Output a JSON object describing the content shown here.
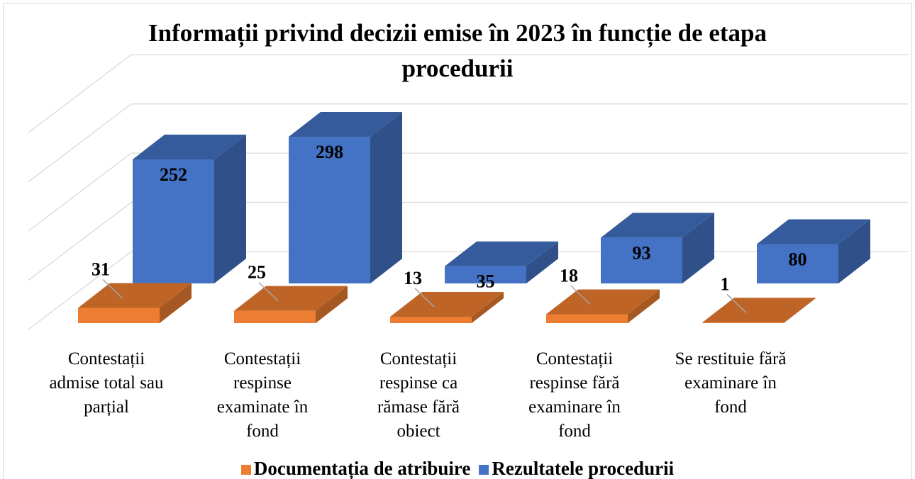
{
  "chart_data": {
    "type": "bar3d",
    "title": "Informații privind decizii emise în 2023 în funcție de etapa procedurii",
    "categories": [
      "Contestații admise total sau parțial",
      "Contestații respinse examinate în fond",
      "Contestații respinse ca rămase fără obiect",
      "Contestații respinse fără examinare în fond",
      "Se restituie fără examinare în fond"
    ],
    "series": [
      {
        "name": "Documentația de atribuire",
        "color": "#ed7d31",
        "values": [
          31,
          25,
          13,
          18,
          1
        ]
      },
      {
        "name": "Rezultatele procedurii",
        "color": "#4472c4",
        "values": [
          252,
          298,
          35,
          93,
          80
        ]
      }
    ],
    "ylim": [
      0,
      400
    ],
    "yticks": [
      0,
      100,
      200,
      300,
      400
    ],
    "grid": true
  }
}
